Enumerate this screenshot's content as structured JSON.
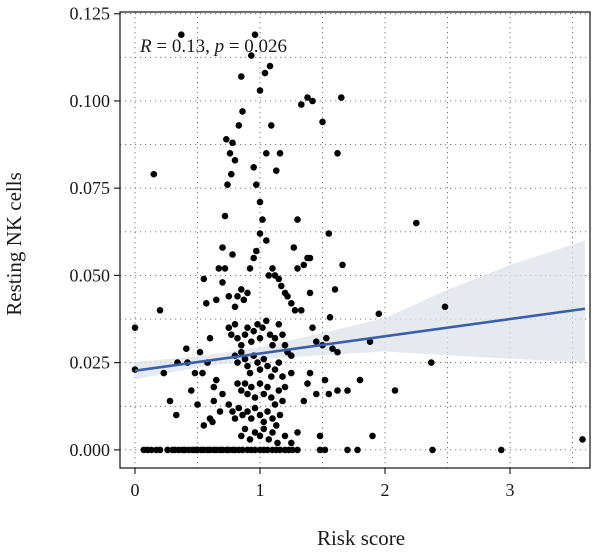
{
  "chart_data": {
    "type": "scatter",
    "title": "",
    "xlabel": "Risk score",
    "ylabel": "Resting NK cells",
    "xlim": [
      -0.12,
      3.64
    ],
    "ylim": [
      -0.0052,
      0.1255
    ],
    "x_ticks": [
      0,
      1,
      2,
      3
    ],
    "x_tick_labels": [
      "0",
      "1",
      "2",
      "3"
    ],
    "y_ticks": [
      0.0,
      0.025,
      0.05,
      0.075,
      0.1,
      0.125
    ],
    "y_tick_labels": [
      "0.000",
      "0.025",
      "0.050",
      "0.075",
      "0.100",
      "0.125"
    ],
    "grid": "dotted, major and minor",
    "legend": "none",
    "annotation": {
      "R_label": "R",
      "R_value": " = 0.13, ",
      "p_label": "p",
      "p_value": " = 0.026"
    },
    "regression": {
      "intercept": 0.0227,
      "slope": 0.00493,
      "x_range": [
        0,
        3.6
      ]
    },
    "confidence_band": [
      {
        "x": 0.0,
        "lo": 0.0202,
        "hi": 0.0252
      },
      {
        "x": 0.5,
        "lo": 0.0236,
        "hi": 0.0268
      },
      {
        "x": 1.0,
        "lo": 0.026,
        "hi": 0.0294
      },
      {
        "x": 1.5,
        "lo": 0.0271,
        "hi": 0.0335
      },
      {
        "x": 2.0,
        "lo": 0.0282,
        "hi": 0.0378
      },
      {
        "x": 2.5,
        "lo": 0.0271,
        "hi": 0.0459
      },
      {
        "x": 3.0,
        "lo": 0.0261,
        "hi": 0.053
      },
      {
        "x": 3.6,
        "lo": 0.025,
        "hi": 0.06
      }
    ],
    "series_color": "#000000",
    "line_color": "#3b5ea8",
    "band_color": "#dde3ea",
    "points": [
      [
        0.0,
        0.035
      ],
      [
        0.0,
        0.023
      ],
      [
        0.07,
        0.0
      ],
      [
        0.1,
        0.0
      ],
      [
        0.13,
        0.0
      ],
      [
        0.17,
        0.0
      ],
      [
        0.2,
        0.0
      ],
      [
        0.15,
        0.079
      ],
      [
        0.2,
        0.04
      ],
      [
        0.23,
        0.022
      ],
      [
        0.26,
        0.0
      ],
      [
        0.3,
        0.0
      ],
      [
        0.32,
        0.0
      ],
      [
        0.35,
        0.0
      ],
      [
        0.38,
        0.0
      ],
      [
        0.37,
        0.119
      ],
      [
        0.28,
        0.014
      ],
      [
        0.33,
        0.01
      ],
      [
        0.34,
        0.025
      ],
      [
        0.4,
        0.0
      ],
      [
        0.43,
        0.0
      ],
      [
        0.46,
        0.0
      ],
      [
        0.42,
        0.025
      ],
      [
        0.41,
        0.029
      ],
      [
        0.45,
        0.017
      ],
      [
        0.48,
        0.0
      ],
      [
        0.5,
        0.0
      ],
      [
        0.53,
        0.0
      ],
      [
        0.55,
        0.0
      ],
      [
        0.58,
        0.0
      ],
      [
        0.6,
        0.0
      ],
      [
        0.63,
        0.0
      ],
      [
        0.65,
        0.0
      ],
      [
        0.68,
        0.0
      ],
      [
        0.7,
        0.0
      ],
      [
        0.73,
        0.0
      ],
      [
        0.75,
        0.0
      ],
      [
        0.78,
        0.0
      ],
      [
        0.8,
        0.0
      ],
      [
        0.83,
        0.0
      ],
      [
        0.86,
        0.0
      ],
      [
        0.9,
        0.0
      ],
      [
        0.93,
        0.0
      ],
      [
        0.96,
        0.0
      ],
      [
        1.0,
        0.0
      ],
      [
        1.03,
        0.0
      ],
      [
        1.06,
        0.0
      ],
      [
        1.1,
        0.0
      ],
      [
        1.13,
        0.0
      ],
      [
        1.16,
        0.0
      ],
      [
        1.2,
        0.0
      ],
      [
        1.23,
        0.0
      ],
      [
        1.26,
        0.0
      ],
      [
        1.3,
        0.0
      ],
      [
        1.48,
        0.0
      ],
      [
        1.52,
        0.0
      ],
      [
        1.7,
        0.0
      ],
      [
        1.78,
        0.0
      ],
      [
        2.38,
        0.0
      ],
      [
        2.93,
        0.0
      ],
      [
        0.5,
        0.0
      ],
      [
        0.55,
        0.049
      ],
      [
        0.57,
        0.042
      ],
      [
        0.52,
        0.028
      ],
      [
        0.54,
        0.022
      ],
      [
        0.58,
        0.025
      ],
      [
        0.6,
        0.032
      ],
      [
        0.63,
        0.018
      ],
      [
        0.62,
        0.008
      ],
      [
        0.55,
        0.007
      ],
      [
        0.5,
        0.013
      ],
      [
        0.48,
        0.022
      ],
      [
        0.65,
        0.043
      ],
      [
        0.67,
        0.052
      ],
      [
        0.7,
        0.058
      ],
      [
        0.72,
        0.067
      ],
      [
        0.74,
        0.076
      ],
      [
        0.76,
        0.085
      ],
      [
        0.73,
        0.089
      ],
      [
        0.78,
        0.088
      ],
      [
        0.8,
        0.083
      ],
      [
        0.77,
        0.079
      ],
      [
        0.83,
        0.093
      ],
      [
        0.86,
        0.097
      ],
      [
        0.85,
        0.107
      ],
      [
        0.93,
        0.113
      ],
      [
        0.96,
        0.119
      ],
      [
        1.0,
        0.103
      ],
      [
        1.04,
        0.108
      ],
      [
        1.08,
        0.11
      ],
      [
        0.95,
        0.081
      ],
      [
        0.97,
        0.076
      ],
      [
        1.0,
        0.071
      ],
      [
        1.05,
        0.085
      ],
      [
        1.09,
        0.093
      ],
      [
        1.13,
        0.08
      ],
      [
        1.16,
        0.085
      ],
      [
        0.7,
        0.048
      ],
      [
        0.72,
        0.052
      ],
      [
        0.75,
        0.044
      ],
      [
        0.78,
        0.056
      ],
      [
        0.8,
        0.041
      ],
      [
        0.82,
        0.044
      ],
      [
        0.85,
        0.046
      ],
      [
        0.87,
        0.043
      ],
      [
        0.9,
        0.045
      ],
      [
        0.92,
        0.052
      ],
      [
        0.95,
        0.055
      ],
      [
        0.97,
        0.057
      ],
      [
        1.0,
        0.062
      ],
      [
        1.02,
        0.066
      ],
      [
        1.05,
        0.06
      ],
      [
        1.07,
        0.05
      ],
      [
        1.1,
        0.052
      ],
      [
        1.12,
        0.05
      ],
      [
        1.15,
        0.049
      ],
      [
        1.17,
        0.047
      ],
      [
        1.2,
        0.045
      ],
      [
        1.22,
        0.044
      ],
      [
        1.25,
        0.042
      ],
      [
        1.27,
        0.058
      ],
      [
        1.3,
        0.066
      ],
      [
        1.33,
        0.099
      ],
      [
        1.38,
        0.101
      ],
      [
        1.42,
        0.1
      ],
      [
        1.5,
        0.094
      ],
      [
        1.55,
        0.062
      ],
      [
        1.62,
        0.085
      ],
      [
        1.65,
        0.101
      ],
      [
        1.66,
        0.053
      ],
      [
        1.35,
        0.053
      ],
      [
        1.38,
        0.055
      ],
      [
        1.4,
        0.055
      ],
      [
        1.3,
        0.052
      ],
      [
        1.33,
        0.04
      ],
      [
        1.28,
        0.04
      ],
      [
        1.4,
        0.045
      ],
      [
        1.42,
        0.035
      ],
      [
        1.45,
        0.031
      ],
      [
        1.5,
        0.03
      ],
      [
        1.53,
        0.032
      ],
      [
        1.56,
        0.038
      ],
      [
        1.6,
        0.046
      ],
      [
        0.75,
        0.035
      ],
      [
        0.77,
        0.033
      ],
      [
        0.8,
        0.036
      ],
      [
        0.82,
        0.032
      ],
      [
        0.85,
        0.03
      ],
      [
        0.88,
        0.033
      ],
      [
        0.9,
        0.035
      ],
      [
        0.93,
        0.031
      ],
      [
        0.95,
        0.034
      ],
      [
        0.98,
        0.036
      ],
      [
        1.0,
        0.032
      ],
      [
        1.02,
        0.035
      ],
      [
        1.05,
        0.037
      ],
      [
        1.08,
        0.033
      ],
      [
        1.1,
        0.03
      ],
      [
        1.12,
        0.032
      ],
      [
        1.15,
        0.036
      ],
      [
        1.18,
        0.033
      ],
      [
        1.2,
        0.03
      ],
      [
        1.22,
        0.028
      ],
      [
        1.25,
        0.027
      ],
      [
        0.8,
        0.027
      ],
      [
        0.82,
        0.025
      ],
      [
        0.85,
        0.028
      ],
      [
        0.88,
        0.026
      ],
      [
        0.9,
        0.024
      ],
      [
        0.92,
        0.022
      ],
      [
        0.95,
        0.027
      ],
      [
        0.98,
        0.025
      ],
      [
        1.0,
        0.023
      ],
      [
        1.03,
        0.026
      ],
      [
        1.06,
        0.024
      ],
      [
        1.09,
        0.021
      ],
      [
        1.12,
        0.023
      ],
      [
        1.15,
        0.025
      ],
      [
        1.18,
        0.021
      ],
      [
        1.2,
        0.018
      ],
      [
        1.25,
        0.022
      ],
      [
        0.82,
        0.019
      ],
      [
        0.85,
        0.017
      ],
      [
        0.88,
        0.019
      ],
      [
        0.9,
        0.016
      ],
      [
        0.93,
        0.018
      ],
      [
        0.96,
        0.015
      ],
      [
        1.0,
        0.019
      ],
      [
        1.03,
        0.016
      ],
      [
        1.06,
        0.018
      ],
      [
        1.09,
        0.015
      ],
      [
        1.12,
        0.013
      ],
      [
        1.15,
        0.017
      ],
      [
        1.18,
        0.014
      ],
      [
        0.75,
        0.013
      ],
      [
        0.78,
        0.011
      ],
      [
        0.8,
        0.009
      ],
      [
        0.83,
        0.012
      ],
      [
        0.86,
        0.01
      ],
      [
        0.9,
        0.011
      ],
      [
        0.93,
        0.009
      ],
      [
        0.96,
        0.012
      ],
      [
        1.0,
        0.01
      ],
      [
        1.03,
        0.008
      ],
      [
        1.06,
        0.011
      ],
      [
        1.1,
        0.009
      ],
      [
        1.13,
        0.007
      ],
      [
        1.16,
        0.01
      ],
      [
        0.85,
        0.004
      ],
      [
        0.88,
        0.006
      ],
      [
        0.92,
        0.003
      ],
      [
        0.96,
        0.005
      ],
      [
        1.0,
        0.004
      ],
      [
        1.03,
        0.006
      ],
      [
        1.07,
        0.003
      ],
      [
        1.1,
        0.005
      ],
      [
        1.14,
        0.002
      ],
      [
        1.2,
        0.004
      ],
      [
        1.25,
        0.002
      ],
      [
        1.3,
        0.005
      ],
      [
        0.65,
        0.02
      ],
      [
        0.63,
        0.014
      ],
      [
        0.68,
        0.011
      ],
      [
        0.7,
        0.016
      ],
      [
        0.6,
        0.009
      ],
      [
        1.35,
        0.014
      ],
      [
        1.38,
        0.019
      ],
      [
        1.4,
        0.022
      ],
      [
        1.45,
        0.016
      ],
      [
        1.48,
        0.004
      ],
      [
        1.55,
        0.016
      ],
      [
        1.52,
        0.02
      ],
      [
        1.62,
        0.017
      ],
      [
        1.7,
        0.017
      ],
      [
        1.8,
        0.02
      ],
      [
        1.88,
        0.031
      ],
      [
        1.95,
        0.039
      ],
      [
        2.08,
        0.017
      ],
      [
        2.25,
        0.065
      ],
      [
        2.37,
        0.025
      ],
      [
        2.48,
        0.041
      ],
      [
        1.62,
        0.028
      ],
      [
        1.58,
        0.029
      ],
      [
        1.9,
        0.004
      ],
      [
        3.58,
        0.003
      ]
    ]
  }
}
